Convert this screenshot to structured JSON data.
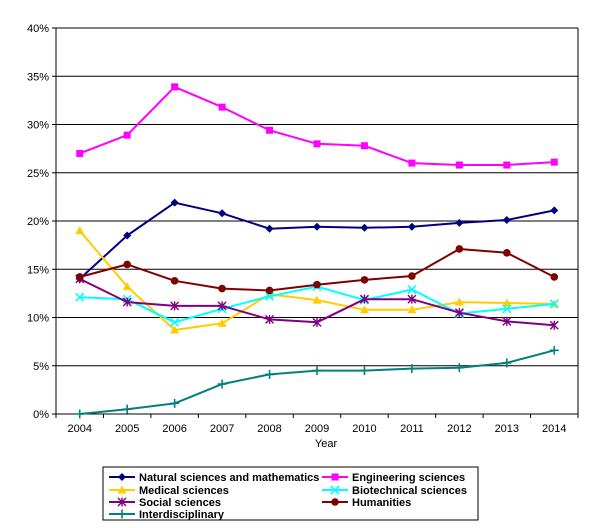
{
  "chart_data": {
    "type": "line",
    "title": "",
    "xlabel": "Year",
    "ylabel": "",
    "x": [
      "2004",
      "2005",
      "2006",
      "2007",
      "2008",
      "2009",
      "2010",
      "2011",
      "2012",
      "2013",
      "2014"
    ],
    "ylim": [
      0,
      40
    ],
    "yticks": [
      0,
      5,
      10,
      15,
      20,
      25,
      30,
      35,
      40
    ],
    "ytick_labels": [
      "0%",
      "5%",
      "10%",
      "15%",
      "20%",
      "25%",
      "30%",
      "35%",
      "40%"
    ],
    "grid": "horizontal",
    "legend_position": "bottom",
    "series": [
      {
        "name": "Natural sciences and mathematics",
        "color": "#000080",
        "marker": "diamond",
        "values": [
          14.0,
          18.5,
          21.9,
          20.8,
          19.2,
          19.4,
          19.3,
          19.4,
          19.8,
          20.1,
          21.1
        ]
      },
      {
        "name": "Engineering sciences",
        "color": "#ff00ff",
        "marker": "square",
        "values": [
          27.0,
          28.9,
          33.9,
          31.8,
          29.4,
          28.0,
          27.8,
          26.0,
          25.8,
          25.8,
          26.1
        ]
      },
      {
        "name": "Medical sciences",
        "color": "#ffcc00",
        "marker": "triangle",
        "values": [
          19.0,
          13.2,
          8.7,
          9.4,
          12.4,
          11.8,
          10.8,
          10.8,
          11.6,
          11.5,
          11.4
        ]
      },
      {
        "name": "Biotechnical sciences",
        "color": "#00ffff",
        "marker": "x",
        "values": [
          12.1,
          11.9,
          9.5,
          10.9,
          12.2,
          13.2,
          11.8,
          12.9,
          10.4,
          10.9,
          11.4
        ]
      },
      {
        "name": "Social sciences",
        "color": "#800080",
        "marker": "star",
        "values": [
          14.0,
          11.6,
          11.2,
          11.2,
          9.8,
          9.5,
          11.9,
          11.9,
          10.5,
          9.6,
          9.2
        ]
      },
      {
        "name": "Humanities",
        "color": "#800000",
        "marker": "circle",
        "values": [
          14.2,
          15.5,
          13.8,
          13.0,
          12.8,
          13.4,
          13.9,
          14.3,
          17.1,
          16.7,
          14.2
        ]
      },
      {
        "name": "Interdisciplinary",
        "color": "#008080",
        "marker": "plus",
        "values": [
          0.0,
          0.5,
          1.1,
          3.1,
          4.1,
          4.5,
          4.5,
          4.7,
          4.8,
          5.3,
          6.6
        ]
      }
    ]
  }
}
